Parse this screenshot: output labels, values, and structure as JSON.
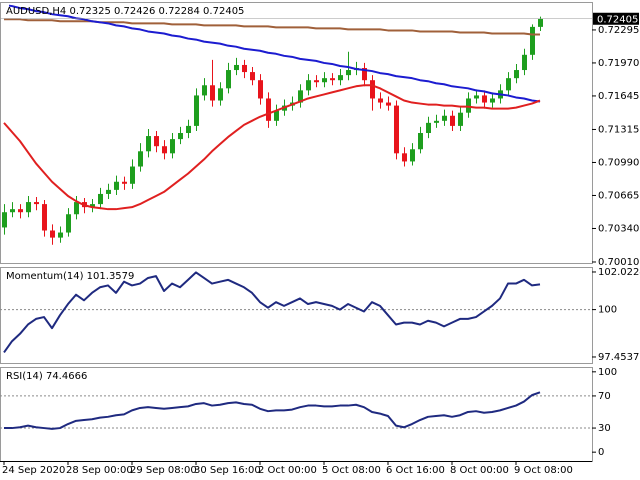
{
  "chart_data": [
    {
      "type": "candlestick",
      "title": "AUDUSD,H4  0.72325 0.72426 0.72284 0.72405",
      "categories": [
        "24 Sep 2020",
        null,
        null,
        null,
        null,
        null,
        null,
        null,
        "28 Sep 00:00",
        null,
        null,
        null,
        null,
        null,
        null,
        null,
        "29 Sep 08:00",
        null,
        null,
        null,
        null,
        null,
        null,
        null,
        "30 Sep 16:00",
        null,
        null,
        null,
        null,
        null,
        null,
        null,
        "2 Oct 00:00",
        null,
        null,
        null,
        null,
        null,
        null,
        null,
        "5 Oct 08:00",
        null,
        null,
        null,
        null,
        null,
        null,
        null,
        "6 Oct 16:00",
        null,
        null,
        null,
        null,
        null,
        null,
        null,
        "8 Oct 00:00",
        null,
        null,
        null,
        null,
        null,
        null,
        null,
        "9 Oct 08:00",
        null,
        null,
        null
      ],
      "open": [
        0.7035,
        0.705,
        0.7053,
        0.705,
        0.706,
        0.7058,
        0.7032,
        0.7025,
        0.703,
        0.7048,
        0.706,
        0.7055,
        0.7058,
        0.7068,
        0.7072,
        0.708,
        0.7078,
        0.7095,
        0.711,
        0.7125,
        0.7115,
        0.7108,
        0.7122,
        0.7128,
        0.7135,
        0.7165,
        0.7175,
        0.716,
        0.7172,
        0.719,
        0.7195,
        0.7188,
        0.718,
        0.7162,
        0.714,
        0.715,
        0.7155,
        0.7158,
        0.717,
        0.718,
        0.7178,
        0.7182,
        0.718,
        0.7185,
        0.719,
        0.7192,
        0.718,
        0.7162,
        0.7158,
        0.7155,
        0.7108,
        0.71,
        0.7112,
        0.7128,
        0.7138,
        0.714,
        0.7145,
        0.7135,
        0.7148,
        0.7162,
        0.7165,
        0.7158,
        0.7162,
        0.717,
        0.7182,
        0.719,
        0.7205,
        0.72325
      ],
      "high": [
        0.7058,
        0.706,
        0.7058,
        0.7066,
        0.7065,
        0.7062,
        0.7038,
        0.7036,
        0.7054,
        0.7066,
        0.7064,
        0.7063,
        0.7074,
        0.7078,
        0.7086,
        0.7085,
        0.7102,
        0.7118,
        0.7132,
        0.713,
        0.7121,
        0.7128,
        0.7134,
        0.7141,
        0.7172,
        0.7182,
        0.72,
        0.7178,
        0.7197,
        0.7202,
        0.72,
        0.7193,
        0.7186,
        0.7168,
        0.7156,
        0.7161,
        0.7164,
        0.7176,
        0.7186,
        0.7185,
        0.7188,
        0.7187,
        0.7191,
        0.7208,
        0.7198,
        0.7197,
        0.7185,
        0.7168,
        0.7164,
        0.716,
        0.7114,
        0.7118,
        0.7134,
        0.7144,
        0.7146,
        0.7151,
        0.715,
        0.7154,
        0.7168,
        0.7171,
        0.717,
        0.7168,
        0.7176,
        0.7188,
        0.7196,
        0.7211,
        0.7235,
        0.72426
      ],
      "low": [
        0.7028,
        0.7045,
        0.7044,
        0.7045,
        0.7052,
        0.7026,
        0.7018,
        0.702,
        0.7026,
        0.7043,
        0.7049,
        0.705,
        0.7053,
        0.7063,
        0.7067,
        0.7072,
        0.7073,
        0.709,
        0.7104,
        0.7109,
        0.7102,
        0.7103,
        0.7117,
        0.7123,
        0.713,
        0.716,
        0.7154,
        0.7155,
        0.7167,
        0.7185,
        0.7182,
        0.7175,
        0.7156,
        0.7133,
        0.7135,
        0.7145,
        0.715,
        0.7153,
        0.7165,
        0.7173,
        0.7173,
        0.7175,
        0.7175,
        0.718,
        0.7185,
        0.7174,
        0.715,
        0.7152,
        0.715,
        0.7102,
        0.7095,
        0.7096,
        0.7108,
        0.7123,
        0.7133,
        0.7135,
        0.713,
        0.713,
        0.7143,
        0.7157,
        0.7152,
        0.7153,
        0.7157,
        0.7165,
        0.7177,
        0.7185,
        0.72,
        0.72284
      ],
      "close": [
        0.705,
        0.7053,
        0.705,
        0.706,
        0.7058,
        0.7032,
        0.7025,
        0.703,
        0.7048,
        0.706,
        0.7055,
        0.7058,
        0.7068,
        0.7072,
        0.708,
        0.7078,
        0.7095,
        0.711,
        0.7125,
        0.7115,
        0.7108,
        0.7122,
        0.7128,
        0.7135,
        0.7165,
        0.7175,
        0.716,
        0.7172,
        0.719,
        0.7195,
        0.7188,
        0.718,
        0.7162,
        0.714,
        0.715,
        0.7155,
        0.7158,
        0.717,
        0.718,
        0.7178,
        0.7182,
        0.718,
        0.7185,
        0.719,
        0.7192,
        0.718,
        0.7162,
        0.7158,
        0.7155,
        0.7108,
        0.71,
        0.7112,
        0.7128,
        0.7138,
        0.714,
        0.7145,
        0.7135,
        0.7148,
        0.7162,
        0.7165,
        0.7158,
        0.7162,
        0.717,
        0.7182,
        0.719,
        0.7205,
        0.72325,
        0.72405
      ],
      "up_color": "#1e9e1e",
      "down_color": "#e8141c",
      "series": [
        {
          "color": "#a0603a",
          "values": [
            0.724,
            0.724,
            0.724,
            0.7239,
            0.7239,
            0.7239,
            0.7239,
            0.7238,
            0.7238,
            0.7238,
            0.7238,
            0.7238,
            0.7237,
            0.7237,
            0.7237,
            0.7237,
            0.7236,
            0.7236,
            0.7236,
            0.7236,
            0.7236,
            0.7235,
            0.7235,
            0.7235,
            0.7235,
            0.7234,
            0.7234,
            0.7234,
            0.7234,
            0.7234,
            0.7233,
            0.7233,
            0.7233,
            0.7233,
            0.7232,
            0.7232,
            0.7232,
            0.7232,
            0.7232,
            0.7231,
            0.7231,
            0.7231,
            0.7231,
            0.723,
            0.723,
            0.723,
            0.723,
            0.723,
            0.7229,
            0.7229,
            0.7229,
            0.7229,
            0.7228,
            0.7228,
            0.7228,
            0.7228,
            0.7228,
            0.7227,
            0.7227,
            0.7227,
            0.7227,
            0.7226,
            0.7226,
            0.7226,
            0.7226,
            0.7226,
            0.7225,
            0.7225
          ]
        },
        {
          "color": "#1c1cd0",
          "values": [
            0.7254,
            0.7253,
            0.7251,
            0.725,
            0.7248,
            0.7247,
            0.7245,
            0.7244,
            0.7243,
            0.7241,
            0.724,
            0.7238,
            0.7237,
            0.7236,
            0.7234,
            0.7233,
            0.7231,
            0.723,
            0.7228,
            0.7227,
            0.7226,
            0.7224,
            0.7223,
            0.7221,
            0.722,
            0.7218,
            0.7217,
            0.7216,
            0.7214,
            0.7213,
            0.7211,
            0.721,
            0.7209,
            0.7207,
            0.7206,
            0.7204,
            0.7203,
            0.7201,
            0.72,
            0.7199,
            0.7197,
            0.7196,
            0.7194,
            0.7193,
            0.7191,
            0.719,
            0.7189,
            0.7187,
            0.7186,
            0.7184,
            0.7183,
            0.7182,
            0.718,
            0.7179,
            0.7177,
            0.7176,
            0.7174,
            0.7173,
            0.7172,
            0.717,
            0.7169,
            0.7167,
            0.7166,
            0.7165,
            0.7163,
            0.7162,
            0.716,
            0.7159
          ]
        },
        {
          "color": "#e02020",
          "values": [
            0.7138,
            0.7129,
            0.712,
            0.7109,
            0.7098,
            0.7089,
            0.708,
            0.7073,
            0.7066,
            0.7061,
            0.7057,
            0.7055,
            0.7054,
            0.7053,
            0.7053,
            0.7054,
            0.7055,
            0.7058,
            0.7062,
            0.7066,
            0.707,
            0.7076,
            0.7082,
            0.7088,
            0.7095,
            0.7102,
            0.711,
            0.7117,
            0.7124,
            0.713,
            0.7136,
            0.714,
            0.7144,
            0.7147,
            0.715,
            0.7153,
            0.7156,
            0.7159,
            0.7162,
            0.7164,
            0.7166,
            0.7168,
            0.717,
            0.7172,
            0.7174,
            0.7175,
            0.7175,
            0.7172,
            0.7168,
            0.7164,
            0.716,
            0.7158,
            0.7157,
            0.7156,
            0.7156,
            0.7155,
            0.7155,
            0.7154,
            0.7154,
            0.7153,
            0.7153,
            0.7152,
            0.7152,
            0.7152,
            0.7153,
            0.7155,
            0.7157,
            0.716
          ]
        }
      ],
      "ylim": [
        0.7,
        0.7257
      ],
      "yticks": [
        0.72295,
        {
          "value": 0.7197,
          "label": "0.71970"
        },
        0.71645,
        0.71315,
        {
          "value": 0.7099,
          "label": "0.70990"
        },
        0.70665,
        {
          "value": 0.7034,
          "label": "0.70340"
        },
        {
          "value": 0.7001,
          "label": "0.70010"
        }
      ],
      "grid": false
    },
    {
      "type": "line",
      "title": "Momentum(14) 101.3579",
      "color": "#1f2a80",
      "values": [
        97.7,
        98.3,
        98.7,
        99.2,
        99.5,
        99.6,
        99.0,
        99.7,
        100.3,
        100.8,
        100.5,
        100.9,
        101.2,
        101.3,
        100.9,
        101.5,
        101.3,
        101.4,
        101.7,
        101.8,
        101.0,
        101.4,
        101.2,
        101.6,
        102.0,
        101.7,
        101.4,
        101.5,
        101.6,
        101.4,
        101.2,
        100.9,
        100.4,
        100.1,
        100.4,
        100.2,
        100.4,
        100.6,
        100.3,
        100.4,
        100.3,
        100.2,
        100.0,
        100.3,
        100.1,
        99.9,
        100.4,
        100.2,
        99.7,
        99.2,
        99.3,
        99.3,
        99.2,
        99.4,
        99.3,
        99.1,
        99.3,
        99.5,
        99.5,
        99.6,
        99.9,
        100.2,
        100.6,
        101.4,
        101.4,
        101.6,
        101.3,
        101.3579
      ],
      "ylim": [
        97.13,
        102.29
      ],
      "yticks": [
        102.0224,
        100,
        97.4537
      ],
      "levels": [
        100
      ]
    },
    {
      "type": "line",
      "title": "RSI(14) 74.4666",
      "color": "#1f2a80",
      "values": [
        30,
        30,
        31,
        33,
        31,
        30,
        29,
        30,
        35,
        39,
        40,
        41,
        43,
        44,
        46,
        47,
        52,
        55,
        56,
        55,
        54,
        55,
        56,
        57,
        60,
        61,
        58,
        59,
        61,
        62,
        60,
        59,
        54,
        51,
        52,
        52,
        53,
        56,
        58,
        58,
        57,
        57,
        58,
        58,
        59,
        56,
        50,
        48,
        45,
        33,
        31,
        35,
        40,
        44,
        45,
        46,
        44,
        46,
        50,
        51,
        49,
        50,
        52,
        55,
        58,
        63,
        71,
        74.4666
      ],
      "ylim": [
        -11,
        106
      ],
      "yticks": [
        100,
        70,
        30,
        0
      ],
      "levels": [
        70,
        30
      ]
    }
  ]
}
